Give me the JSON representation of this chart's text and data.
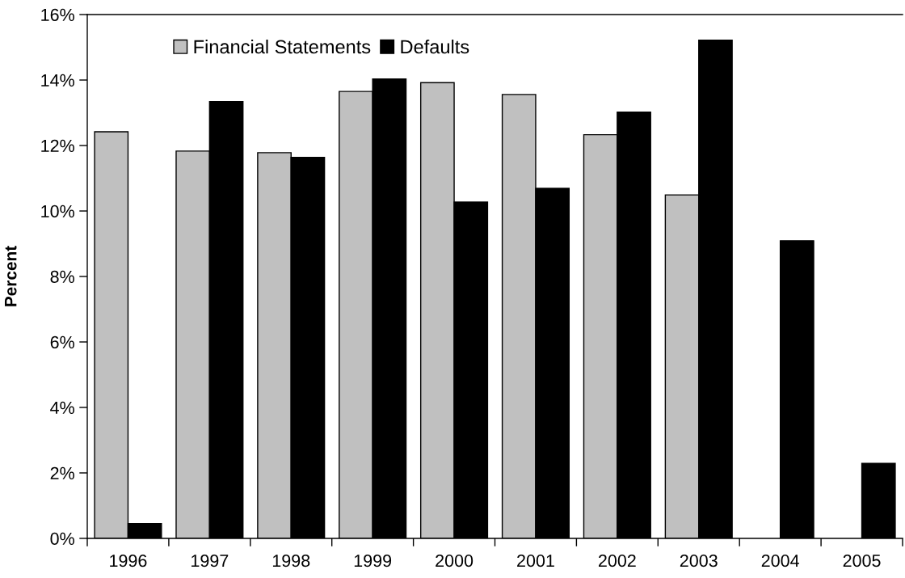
{
  "chart_data": {
    "type": "bar",
    "ylabel": "Percent",
    "categories": [
      "1996",
      "1997",
      "1998",
      "1999",
      "2000",
      "2001",
      "2002",
      "2003",
      "2004",
      "2005"
    ],
    "series": [
      {
        "name": "Financial Statements",
        "color": "#c0c0c0",
        "values": [
          12.42,
          11.83,
          11.78,
          13.65,
          13.92,
          13.56,
          12.33,
          10.49,
          null,
          null
        ]
      },
      {
        "name": "Defaults",
        "color": "#000000",
        "values": [
          0.45,
          13.34,
          11.64,
          14.03,
          10.27,
          10.69,
          13.02,
          15.22,
          9.09,
          2.29
        ]
      }
    ],
    "ylim": [
      0,
      16
    ],
    "yticks": [
      {
        "value": 0,
        "label": "0%"
      },
      {
        "value": 2,
        "label": "2%"
      },
      {
        "value": 4,
        "label": "4%"
      },
      {
        "value": 6,
        "label": "6%"
      },
      {
        "value": 8,
        "label": "8%"
      },
      {
        "value": 10,
        "label": "10%"
      },
      {
        "value": 12,
        "label": "12%"
      },
      {
        "value": 14,
        "label": "14%"
      },
      {
        "value": 16,
        "label": "16%"
      }
    ],
    "grid": false,
    "legend": "top left"
  }
}
